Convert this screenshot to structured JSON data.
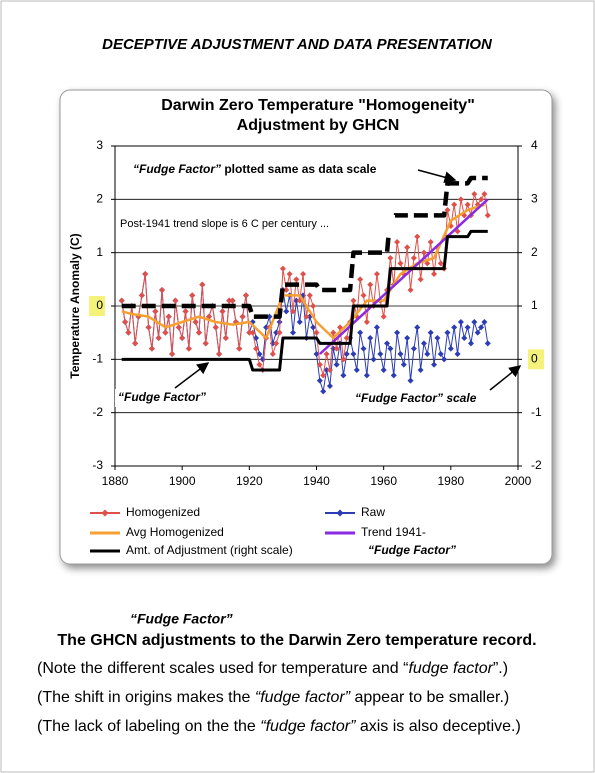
{
  "heading": "DECEPTIVE ADJUSTMENT AND DATA PRESENTATION",
  "chart_data": {
    "type": "line",
    "title": [
      "Darwin Zero Temperature \"Homogeneity\"",
      "Adjustment by GHCN"
    ],
    "y_label": "Temperature Anomaly (C)",
    "xlim": [
      1880,
      2000
    ],
    "xticks": [
      1880,
      1900,
      1920,
      1940,
      1960,
      1980,
      2000
    ],
    "ylim": [
      -3,
      3
    ],
    "yticks": [
      -3,
      -2,
      -1,
      0,
      1,
      2,
      3
    ],
    "y2lim": [
      -2,
      4
    ],
    "y2ticks": [
      -2,
      -1,
      0,
      1,
      2,
      3,
      4
    ],
    "grid": true,
    "highlight_tick": 0,
    "legend": "bottom",
    "annotations": [
      "“Fudge Factor”",
      " plotted same as data scale",
      "Post-1941 trend slope is 6 C per century ...",
      "“Fudge Factor”",
      "“Fudge Factor” scale",
      "“Fudge Factor”"
    ],
    "x": [
      1882,
      1883,
      1884,
      1885,
      1886,
      1887,
      1888,
      1889,
      1890,
      1891,
      1892,
      1893,
      1894,
      1895,
      1896,
      1897,
      1898,
      1899,
      1900,
      1901,
      1902,
      1903,
      1904,
      1905,
      1906,
      1907,
      1908,
      1909,
      1910,
      1911,
      1912,
      1913,
      1914,
      1915,
      1916,
      1917,
      1918,
      1919,
      1920,
      1921,
      1922,
      1923,
      1924,
      1925,
      1926,
      1927,
      1928,
      1929,
      1930,
      1931,
      1932,
      1933,
      1934,
      1935,
      1936,
      1937,
      1938,
      1939,
      1940,
      1941,
      1942,
      1943,
      1944,
      1945,
      1946,
      1947,
      1948,
      1949,
      1950,
      1951,
      1952,
      1953,
      1954,
      1955,
      1956,
      1957,
      1958,
      1959,
      1960,
      1961,
      1962,
      1963,
      1964,
      1965,
      1966,
      1967,
      1968,
      1969,
      1970,
      1971,
      1972,
      1973,
      1974,
      1975,
      1976,
      1977,
      1978,
      1979,
      1980,
      1981,
      1982,
      1983,
      1984,
      1985,
      1986,
      1987,
      1988,
      1989,
      1990,
      1991
    ],
    "series": [
      {
        "name": "Homogenized",
        "color": "#e0504a",
        "marker": "diamond",
        "width": 1,
        "values": [
          0.1,
          -0.3,
          -0.5,
          0.0,
          -0.7,
          -0.2,
          0.2,
          0.6,
          -0.4,
          -0.8,
          -0.1,
          -0.6,
          0.3,
          -0.5,
          -0.2,
          -0.9,
          0.1,
          -0.4,
          -0.6,
          -0.1,
          -0.8,
          0.2,
          -0.3,
          -0.5,
          0.4,
          -0.7,
          -0.2,
          0.0,
          -0.4,
          -0.9,
          -0.1,
          -0.6,
          0.1,
          0.1,
          -0.3,
          -0.8,
          -0.2,
          0.2,
          -0.5,
          -0.5,
          -0.8,
          -1.1,
          -1.2,
          -0.6,
          -0.4,
          -0.9,
          -0.7,
          -0.5,
          0.7,
          0.3,
          0.6,
          -0.1,
          0.5,
          0.1,
          0.6,
          -0.2,
          0.2,
          0.0,
          -0.5,
          -1.1,
          -1.3,
          -0.9,
          -1.2,
          -0.5,
          -0.8,
          -0.4,
          -1.0,
          -0.6,
          -0.3,
          0.1,
          -0.2,
          0.5,
          0.2,
          -0.3,
          0.4,
          0.0,
          0.6,
          0.1,
          -0.2,
          0.3,
          0.9,
          0.4,
          1.2,
          0.8,
          0.6,
          1.1,
          0.3,
          0.9,
          1.3,
          0.5,
          1.0,
          0.8,
          1.2,
          0.6,
          1.1,
          0.8,
          0.7,
          1.8,
          1.5,
          1.9,
          1.4,
          2.0,
          1.7,
          1.9,
          1.7,
          2.1,
          1.9,
          2.0,
          2.1,
          1.7
        ]
      },
      {
        "name": "Raw",
        "color": "#2c3cb4",
        "marker": "diamond",
        "width": 1,
        "values": [
          0.1,
          -0.3,
          -0.5,
          0.0,
          -0.7,
          -0.2,
          0.2,
          0.6,
          -0.4,
          -0.8,
          -0.1,
          -0.6,
          0.3,
          -0.5,
          -0.2,
          -0.9,
          0.1,
          -0.4,
          -0.6,
          -0.1,
          -0.8,
          0.2,
          -0.3,
          -0.5,
          0.4,
          -0.7,
          -0.2,
          0.0,
          -0.4,
          -0.9,
          -0.1,
          -0.6,
          0.1,
          0.1,
          -0.3,
          -0.8,
          -0.2,
          0.2,
          -0.5,
          -0.3,
          -0.6,
          -0.9,
          -1.0,
          -0.4,
          -0.2,
          -0.7,
          -0.5,
          -0.3,
          0.3,
          -0.1,
          0.2,
          -0.5,
          0.1,
          -0.3,
          0.2,
          -0.6,
          -0.2,
          -0.4,
          -0.9,
          -1.4,
          -1.6,
          -1.2,
          -1.5,
          -0.8,
          -1.1,
          -0.7,
          -1.3,
          -0.9,
          -0.6,
          -0.9,
          -1.2,
          -0.5,
          -0.8,
          -1.3,
          -0.6,
          -1.0,
          -0.4,
          -0.9,
          -1.2,
          -0.7,
          -0.8,
          -1.3,
          -0.5,
          -0.9,
          -1.1,
          -0.6,
          -1.4,
          -0.8,
          -0.4,
          -1.2,
          -0.7,
          -0.9,
          -0.5,
          -1.1,
          -0.6,
          -0.9,
          -1.0,
          -0.5,
          -0.8,
          -0.4,
          -0.9,
          -0.3,
          -0.6,
          -0.4,
          -0.7,
          -0.3,
          -0.5,
          -0.4,
          -0.3,
          -0.7
        ]
      },
      {
        "name": "Avg Homogenized",
        "color": "#f5a030",
        "width": 2.5,
        "x": [
          1882,
          1885,
          1890,
          1895,
          1900,
          1905,
          1910,
          1915,
          1920,
          1925,
          1930,
          1935,
          1940,
          1945,
          1950,
          1955,
          1960,
          1965,
          1970,
          1975,
          1980,
          1985,
          1990
        ],
        "values": [
          -0.1,
          -0.15,
          -0.2,
          -0.4,
          -0.3,
          -0.2,
          -0.3,
          -0.35,
          -0.3,
          -0.6,
          0.2,
          0.2,
          -0.3,
          -0.6,
          -0.3,
          0.1,
          0.1,
          0.6,
          0.8,
          0.9,
          1.6,
          1.8,
          1.9
        ]
      },
      {
        "name": "Trend 1941-",
        "color": "#8a2be2",
        "width": 2.5,
        "x": [
          1941,
          1991
        ],
        "values": [
          -0.9,
          2.0
        ]
      },
      {
        "name": "Amt. of Adjustment (right scale)",
        "color": "#000000",
        "width": 3,
        "axis": "y2",
        "values": [
          0,
          0,
          0,
          0,
          0,
          0,
          0,
          0,
          0,
          0,
          0,
          0,
          0,
          0,
          0,
          0,
          0,
          0,
          0,
          0,
          0,
          0,
          0,
          0,
          0,
          0,
          0,
          0,
          0,
          0,
          0,
          0,
          0,
          0,
          0,
          0,
          0,
          0,
          0,
          -0.2,
          -0.2,
          -0.2,
          -0.2,
          -0.2,
          -0.2,
          -0.2,
          -0.2,
          -0.2,
          0.4,
          0.4,
          0.4,
          0.4,
          0.4,
          0.4,
          0.4,
          0.4,
          0.4,
          0.4,
          0.4,
          0.3,
          0.3,
          0.3,
          0.3,
          0.3,
          0.3,
          0.3,
          0.3,
          0.3,
          0.3,
          1.0,
          1.0,
          1.0,
          1.0,
          1.0,
          1.0,
          1.0,
          1.0,
          1.0,
          1.0,
          1.0,
          1.7,
          1.7,
          1.7,
          1.7,
          1.7,
          1.7,
          1.7,
          1.7,
          1.7,
          1.7,
          1.7,
          1.7,
          1.7,
          1.7,
          1.7,
          1.7,
          1.7,
          2.3,
          2.3,
          2.3,
          2.3,
          2.3,
          2.3,
          2.3,
          2.4,
          2.4,
          2.4,
          2.4,
          2.4,
          2.4
        ]
      },
      {
        "color": "#000000",
        "width": 4.5,
        "style": "dashed",
        "values": [
          0,
          0,
          0,
          0,
          0,
          0,
          0,
          0,
          0,
          0,
          0,
          0,
          0,
          0,
          0,
          0,
          0,
          0,
          0,
          0,
          0,
          0,
          0,
          0,
          0,
          0,
          0,
          0,
          0,
          0,
          0,
          0,
          0,
          0,
          0,
          0,
          0,
          0,
          0,
          -0.2,
          -0.2,
          -0.2,
          -0.2,
          -0.2,
          -0.2,
          -0.2,
          -0.2,
          -0.2,
          0.4,
          0.4,
          0.4,
          0.4,
          0.4,
          0.4,
          0.4,
          0.4,
          0.4,
          0.4,
          0.4,
          0.3,
          0.3,
          0.3,
          0.3,
          0.3,
          0.3,
          0.3,
          0.3,
          0.3,
          0.3,
          1.0,
          1.0,
          1.0,
          1.0,
          1.0,
          1.0,
          1.0,
          1.0,
          1.0,
          1.0,
          1.0,
          1.7,
          1.7,
          1.7,
          1.7,
          1.7,
          1.7,
          1.7,
          1.7,
          1.7,
          1.7,
          1.7,
          1.7,
          1.7,
          1.7,
          1.7,
          1.7,
          1.7,
          2.3,
          2.3,
          2.3,
          2.3,
          2.3,
          2.3,
          2.3,
          2.4,
          2.4,
          2.4,
          2.4,
          2.4,
          2.4
        ]
      }
    ]
  },
  "overlay_label": "“Fudge Factor”",
  "caption": "The GHCN adjustments to the Darwin Zero temperature record.",
  "notes": [
    [
      "(Note the different scales used for temperature and “",
      "fudge factor",
      "”.)"
    ],
    [
      "(The shift in origins makes the ",
      "“fudge factor”",
      " appear to be smaller.)"
    ],
    [
      "(The lack of labeling on the the ",
      "“fudge factor”",
      " axis is also deceptive.)"
    ]
  ]
}
